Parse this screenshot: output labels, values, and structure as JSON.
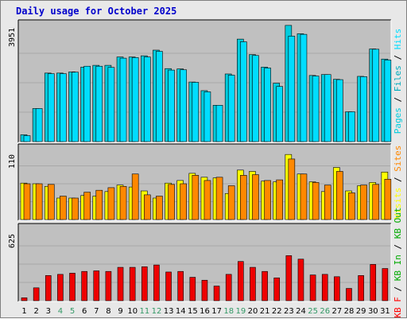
{
  "title": "Daily usage for October 2025",
  "colors": {
    "pages": "#00ccdd",
    "files": "#00aabb",
    "hits": "#00ddff",
    "visits": "#ffff00",
    "sites": "#ff8800",
    "kbin": "#00aa00",
    "kbout": "#00aa00",
    "kbf": "#ff0000",
    "weekend_tick": "#339966",
    "weekday_tick": "#000000"
  },
  "chart_data": [
    {
      "type": "bar",
      "panel": "top",
      "ymax_label": "3951",
      "ylim": [
        0,
        3951
      ],
      "legend": [
        {
          "text": "Pages",
          "color": "#00ccdd"
        },
        {
          "text": "Files",
          "color": "#00aabb"
        },
        {
          "text": "Hits",
          "color": "#00ddff"
        }
      ],
      "categories": [
        "1",
        "2",
        "3",
        "4",
        "5",
        "6",
        "7",
        "8",
        "9",
        "10",
        "11",
        "12",
        "13",
        "14",
        "15",
        "16",
        "17",
        "18",
        "19",
        "20",
        "21",
        "22",
        "23",
        "24",
        "25",
        "26",
        "27",
        "28",
        "29",
        "30",
        "31"
      ],
      "series": [
        {
          "name": "Hits",
          "values": [
            230,
            1110,
            2300,
            2300,
            2340,
            2500,
            2560,
            2560,
            2840,
            2840,
            2880,
            3070,
            2450,
            2440,
            2000,
            1710,
            1220,
            2270,
            3440,
            2920,
            2500,
            1960,
            3900,
            3620,
            2220,
            2250,
            2090,
            1000,
            2190,
            3110,
            2770
          ]
        },
        {
          "name": "Pages",
          "values": [
            200,
            1110,
            2280,
            2280,
            2330,
            2530,
            2530,
            2490,
            2800,
            2820,
            2840,
            3030,
            2400,
            2410,
            1990,
            1670,
            1220,
            2230,
            3350,
            2890,
            2470,
            1850,
            3540,
            3600,
            2200,
            2250,
            2080,
            1000,
            2180,
            3100,
            2740
          ]
        }
      ]
    },
    {
      "type": "bar",
      "panel": "middle",
      "ymax_label": "110",
      "ylim": [
        0,
        110
      ],
      "legend": [
        {
          "text": "Visits",
          "color": "#ffff00"
        },
        {
          "text": "Sites",
          "color": "#ff8800"
        }
      ],
      "categories": [
        "1",
        "2",
        "3",
        "4",
        "5",
        "6",
        "7",
        "8",
        "9",
        "10",
        "11",
        "12",
        "13",
        "14",
        "15",
        "16",
        "17",
        "18",
        "19",
        "20",
        "21",
        "22",
        "23",
        "24",
        "25",
        "26",
        "27",
        "28",
        "29",
        "30",
        "31"
      ],
      "series": [
        {
          "name": "Visits",
          "values": [
            56,
            55,
            51,
            33,
            33,
            37,
            36,
            43,
            53,
            50,
            44,
            33,
            56,
            60,
            71,
            65,
            64,
            40,
            76,
            74,
            59,
            58,
            100,
            70,
            58,
            43,
            80,
            44,
            52,
            57,
            73
          ]
        },
        {
          "name": "Sites",
          "values": [
            55,
            55,
            54,
            36,
            33,
            42,
            45,
            49,
            51,
            70,
            38,
            36,
            54,
            55,
            68,
            60,
            65,
            52,
            68,
            69,
            60,
            61,
            93,
            70,
            57,
            53,
            74,
            41,
            53,
            54,
            62
          ]
        }
      ]
    },
    {
      "type": "bar",
      "panel": "bottom",
      "ymax_label": "625",
      "ylim": [
        0,
        625
      ],
      "legend": [
        {
          "text": "KB F",
          "color": "#ff0000"
        },
        {
          "text": "KB In",
          "color": "#00aa00"
        },
        {
          "text": "KB Out",
          "color": "#00aa00"
        }
      ],
      "categories": [
        "1",
        "2",
        "3",
        "4",
        "5",
        "6",
        "7",
        "8",
        "9",
        "10",
        "11",
        "12",
        "13",
        "14",
        "15",
        "16",
        "17",
        "18",
        "19",
        "20",
        "21",
        "22",
        "23",
        "24",
        "25",
        "26",
        "27",
        "28",
        "29",
        "30",
        "31"
      ],
      "weekend_days": [
        "4",
        "5",
        "11",
        "12",
        "18",
        "19",
        "25",
        "26"
      ],
      "series": [
        {
          "name": "KB F",
          "values": [
            25,
            110,
            215,
            225,
            235,
            250,
            255,
            250,
            285,
            285,
            290,
            305,
            245,
            250,
            200,
            175,
            125,
            225,
            335,
            285,
            250,
            195,
            385,
            355,
            220,
            225,
            205,
            105,
            215,
            310,
            275
          ]
        }
      ]
    }
  ]
}
